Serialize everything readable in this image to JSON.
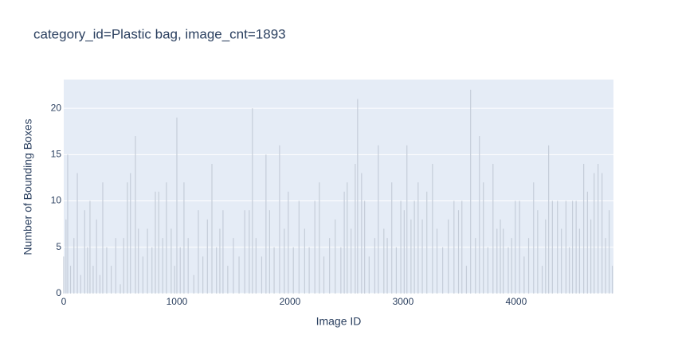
{
  "chart_data": {
    "type": "bar",
    "title": "category_id=Plastic bag, image_cnt=1893",
    "x_label": "Image ID",
    "y_label": "Number of Bounding Boxes",
    "color": "#c5cdd9",
    "grid": true,
    "xlim": [
      0,
      4860
    ],
    "ylim": [
      0,
      23.1
    ],
    "xticks": [
      0,
      1000,
      2000,
      3000,
      4000
    ],
    "yticks": [
      0,
      5,
      10,
      15,
      20
    ],
    "x": [
      0,
      20,
      35,
      60,
      90,
      120,
      150,
      185,
      210,
      232,
      260,
      290,
      320,
      345,
      380,
      420,
      460,
      500,
      530,
      563,
      590,
      634,
      660,
      700,
      740,
      780,
      810,
      840,
      875,
      908,
      950,
      980,
      1000,
      1030,
      1063,
      1100,
      1150,
      1190,
      1230,
      1270,
      1310,
      1350,
      1380,
      1408,
      1450,
      1500,
      1550,
      1600,
      1640,
      1668,
      1700,
      1750,
      1788,
      1820,
      1860,
      1908,
      1950,
      1985,
      2030,
      2080,
      2130,
      2170,
      2220,
      2260,
      2300,
      2350,
      2400,
      2450,
      2480,
      2506,
      2540,
      2577,
      2598,
      2633,
      2660,
      2700,
      2750,
      2781,
      2830,
      2860,
      2900,
      2940,
      2980,
      3010,
      3034,
      3070,
      3100,
      3133,
      3170,
      3210,
      3260,
      3300,
      3350,
      3400,
      3450,
      3490,
      3520,
      3560,
      3597,
      3640,
      3675,
      3710,
      3750,
      3795,
      3830,
      3860,
      3886,
      3930,
      3960,
      3992,
      4030,
      4070,
      4110,
      4154,
      4190,
      4230,
      4260,
      4287,
      4320,
      4365,
      4400,
      4440,
      4470,
      4498,
      4530,
      4560,
      4597,
      4630,
      4660,
      4689,
      4724,
      4759,
      4790,
      4822,
      4850
    ],
    "values": [
      4,
      8,
      15,
      3,
      6,
      13,
      2,
      9,
      5,
      10,
      3,
      8,
      2,
      12,
      5,
      3,
      6,
      1,
      6,
      12,
      13,
      17,
      7,
      4,
      7,
      5,
      11,
      11,
      6,
      12,
      7,
      3,
      19,
      5,
      12,
      6,
      2,
      9,
      4,
      8,
      14,
      5,
      7,
      9,
      3,
      6,
      4,
      9,
      9,
      20,
      6,
      4,
      15,
      9,
      5,
      16,
      7,
      11,
      5,
      10,
      7,
      5,
      10,
      12,
      4,
      6,
      8,
      5,
      11,
      12,
      7,
      14,
      21,
      13,
      10,
      4,
      6,
      16,
      7,
      6,
      12,
      5,
      10,
      9,
      16,
      8,
      10,
      12,
      8,
      11,
      14,
      7,
      5,
      8,
      10,
      9,
      10,
      3,
      22,
      6,
      17,
      12,
      5,
      14,
      7,
      8,
      7,
      5,
      6,
      10,
      10,
      4,
      6,
      12,
      9,
      3,
      8,
      16,
      10,
      10,
      7,
      10,
      5,
      10,
      10,
      7,
      14,
      11,
      8,
      13,
      14,
      13,
      6,
      9,
      3
    ]
  }
}
